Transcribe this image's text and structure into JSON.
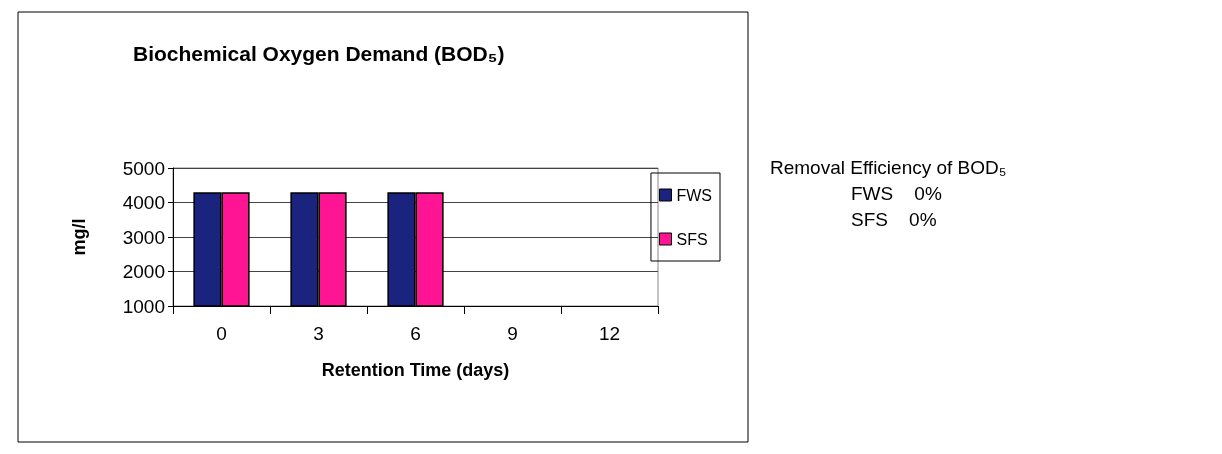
{
  "chart_data": {
    "type": "bar",
    "title": "Biochemical Oxygen Demand (BOD₅)",
    "xlabel": "Retention Time (days)",
    "ylabel": "mg/l",
    "categories": [
      "0",
      "3",
      "6",
      "9",
      "12"
    ],
    "series": [
      {
        "name": "FWS",
        "color": "#1a237e",
        "values": [
          4300,
          4300,
          4300,
          null,
          null
        ]
      },
      {
        "name": "SFS",
        "color": "#ff1493",
        "values": [
          4300,
          4300,
          4300,
          null,
          null
        ]
      }
    ],
    "ylim": [
      1000,
      5000
    ],
    "yticks": [
      1000,
      2000,
      3000,
      4000,
      5000
    ],
    "grid": "y",
    "legend": "right",
    "annotations": [
      "Removal Efficiency of BOD₅",
      "FWS    0%",
      "SFS    0%"
    ]
  }
}
